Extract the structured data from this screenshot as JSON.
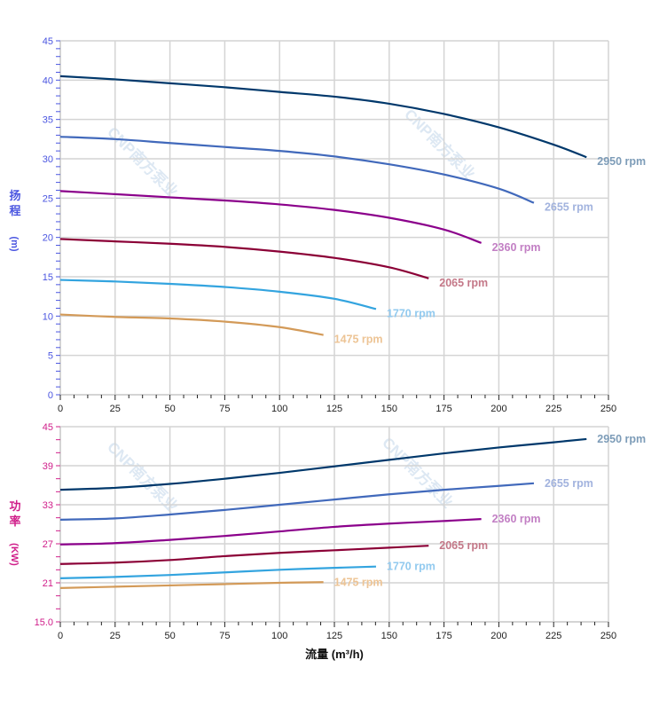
{
  "watermark": "CNP南方泵业",
  "chart_data": [
    {
      "type": "line",
      "ylabel_top": "扬程",
      "ylabel_unit": "(m)",
      "ylim": [
        0,
        45
      ],
      "yticks": [
        "0",
        "5",
        "10",
        "15",
        "20",
        "25",
        "30",
        "35",
        "40",
        "45"
      ],
      "xlim": [
        0,
        250
      ],
      "xticks": [
        "0",
        "25",
        "50",
        "75",
        "100",
        "125",
        "150",
        "175",
        "200",
        "225",
        "250"
      ],
      "grid": true,
      "series": [
        {
          "name": "2950 rpm",
          "color": "#00386b",
          "label_color": "#7d9cb8",
          "x": [
            0,
            25,
            50,
            75,
            100,
            125,
            150,
            175,
            200,
            225,
            240
          ],
          "y": [
            40.5,
            40.1,
            39.6,
            39.1,
            38.5,
            37.9,
            37.0,
            35.7,
            34.0,
            31.8,
            30.2
          ]
        },
        {
          "name": "2655 rpm",
          "color": "#4169bb",
          "label_color": "#a2b3de",
          "x": [
            0,
            25,
            50,
            75,
            100,
            125,
            150,
            175,
            200,
            216
          ],
          "y": [
            32.8,
            32.5,
            32.0,
            31.5,
            31.0,
            30.3,
            29.3,
            28.0,
            26.2,
            24.4
          ]
        },
        {
          "name": "2360 rpm",
          "color": "#8b008b",
          "label_color": "#c27fc4",
          "x": [
            0,
            25,
            50,
            75,
            100,
            125,
            150,
            175,
            192
          ],
          "y": [
            25.9,
            25.5,
            25.1,
            24.7,
            24.2,
            23.5,
            22.5,
            21.0,
            19.3
          ]
        },
        {
          "name": "2065 rpm",
          "color": "#8b0036",
          "label_color": "#c47888",
          "x": [
            0,
            25,
            50,
            75,
            100,
            125,
            150,
            168
          ],
          "y": [
            19.8,
            19.5,
            19.2,
            18.8,
            18.2,
            17.4,
            16.2,
            14.8
          ]
        },
        {
          "name": "1770 rpm",
          "color": "#33a4df",
          "label_color": "#92caef",
          "x": [
            0,
            25,
            50,
            75,
            100,
            125,
            144
          ],
          "y": [
            14.6,
            14.4,
            14.1,
            13.7,
            13.1,
            12.2,
            10.9
          ]
        },
        {
          "name": "1475 rpm",
          "color": "#d39a58",
          "label_color": "#edc495",
          "x": [
            0,
            25,
            50,
            75,
            100,
            120
          ],
          "y": [
            10.2,
            9.9,
            9.7,
            9.3,
            8.6,
            7.6
          ]
        }
      ]
    },
    {
      "type": "line",
      "ylabel_top": "功率",
      "ylabel_unit": "(KW)",
      "xlabel": "流量 (m³/h)",
      "ylim": [
        15,
        45
      ],
      "yticks": [
        "15.0",
        "21",
        "27",
        "33",
        "39",
        "45"
      ],
      "xlim": [
        0,
        250
      ],
      "xticks": [
        "0",
        "25",
        "50",
        "75",
        "100",
        "125",
        "150",
        "175",
        "200",
        "225",
        "250"
      ],
      "grid": true,
      "series": [
        {
          "name": "2950 rpm",
          "color": "#00386b",
          "label_color": "#7d9cb8",
          "x": [
            0,
            25,
            50,
            75,
            100,
            125,
            150,
            175,
            200,
            225,
            240
          ],
          "y": [
            35.3,
            35.6,
            36.2,
            37.0,
            37.9,
            38.9,
            39.9,
            40.9,
            41.8,
            42.6,
            43.1
          ]
        },
        {
          "name": "2655 rpm",
          "color": "#4169bb",
          "label_color": "#a2b3de",
          "x": [
            0,
            25,
            50,
            75,
            100,
            125,
            150,
            175,
            200,
            216
          ],
          "y": [
            30.7,
            30.9,
            31.5,
            32.2,
            33.0,
            33.8,
            34.6,
            35.3,
            35.9,
            36.3
          ]
        },
        {
          "name": "2360 rpm",
          "color": "#8b008b",
          "label_color": "#c27fc4",
          "x": [
            0,
            25,
            50,
            75,
            100,
            125,
            150,
            175,
            192
          ],
          "y": [
            26.9,
            27.1,
            27.6,
            28.2,
            28.9,
            29.6,
            30.1,
            30.5,
            30.8
          ]
        },
        {
          "name": "2065 rpm",
          "color": "#8b0036",
          "label_color": "#c47888",
          "x": [
            0,
            25,
            50,
            75,
            100,
            125,
            150,
            168
          ],
          "y": [
            23.9,
            24.1,
            24.5,
            25.1,
            25.6,
            26.0,
            26.4,
            26.7
          ]
        },
        {
          "name": "1770 rpm",
          "color": "#33a4df",
          "label_color": "#92caef",
          "x": [
            0,
            25,
            50,
            75,
            100,
            125,
            144
          ],
          "y": [
            21.7,
            21.9,
            22.2,
            22.6,
            23.0,
            23.3,
            23.5
          ]
        },
        {
          "name": "1475 rpm",
          "color": "#d39a58",
          "label_color": "#edc495",
          "x": [
            0,
            25,
            50,
            75,
            100,
            120
          ],
          "y": [
            20.2,
            20.4,
            20.6,
            20.8,
            21.0,
            21.1
          ]
        }
      ]
    }
  ]
}
